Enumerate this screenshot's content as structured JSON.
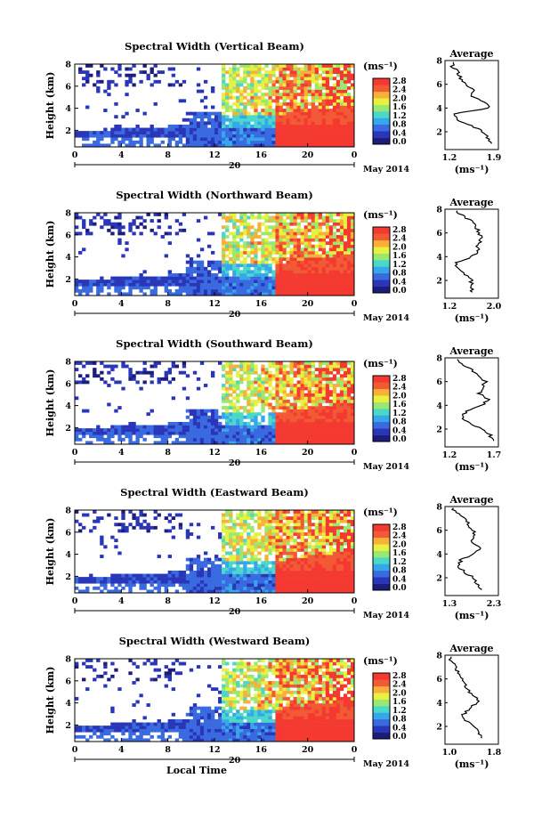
{
  "figure": {
    "xlabel": "Local Time",
    "ylabel": "Height (km)",
    "x_ticks": [
      "0",
      "4",
      "8",
      "12",
      "16",
      "20",
      "0"
    ],
    "date_tick": "20",
    "month_label": "May 2014",
    "colorbar_unit": "(ms⁻¹)",
    "colorbar_ticks": [
      "2.8",
      "2.4",
      "2.0",
      "1.6",
      "1.2",
      "0.8",
      "0.4",
      "0.0"
    ],
    "y_ticks": [
      "8",
      "6",
      "4",
      "2"
    ],
    "avg_title": "Average",
    "avg_unit": "(ms⁻¹)",
    "colors": {
      "scale": [
        "#1c1c7a",
        "#2a36b8",
        "#3a6ae0",
        "#36a8ea",
        "#4ad8c8",
        "#9ae870",
        "#e8f040",
        "#f8b038",
        "#f25a36",
        "#f43a30"
      ]
    }
  },
  "chart_data": [
    {
      "type": "heatmap",
      "title": "Spectral Width (Vertical Beam)",
      "xlabel": "",
      "ylabel": "Height (km)",
      "xlim_hours": [
        0,
        24
      ],
      "ylim_km": [
        0.5,
        8
      ],
      "colorbar_ticks": [
        "2.8",
        "2.4",
        "2.0",
        "1.6",
        "1.2",
        "0.8",
        "0.4",
        "0.0"
      ],
      "average_profile": {
        "xlim": [
          1.2,
          1.9
        ],
        "x_ticks": [
          "1.2",
          "1.9"
        ],
        "ylim_km": [
          0.5,
          8
        ],
        "height_km": [
          1.0,
          1.5,
          2.0,
          2.5,
          3.0,
          3.5,
          4.0,
          4.5,
          5.0,
          5.5,
          6.0,
          6.5,
          7.0,
          7.5,
          8.0
        ],
        "value": [
          1.82,
          1.75,
          1.7,
          1.55,
          1.35,
          1.3,
          1.78,
          1.72,
          1.55,
          1.58,
          1.45,
          1.4,
          1.38,
          1.3,
          1.28
        ]
      }
    },
    {
      "type": "heatmap",
      "title": "Spectral Width (Northward Beam)",
      "xlabel": "",
      "ylabel": "Height (km)",
      "xlim_hours": [
        0,
        24
      ],
      "ylim_km": [
        0.5,
        8
      ],
      "colorbar_ticks": [
        "2.8",
        "2.4",
        "2.0",
        "1.6",
        "1.2",
        "0.8",
        "0.4",
        "0.0"
      ],
      "average_profile": {
        "xlim": [
          1.2,
          2.0
        ],
        "x_ticks": [
          "1.2",
          "2.0"
        ],
        "ylim_km": [
          0.5,
          8
        ],
        "height_km": [
          1.0,
          1.5,
          2.0,
          2.5,
          3.0,
          3.5,
          4.0,
          4.5,
          5.0,
          5.5,
          6.0,
          6.5,
          7.0,
          7.5,
          8.0
        ],
        "value": [
          1.62,
          1.58,
          1.6,
          1.5,
          1.42,
          1.35,
          1.6,
          1.7,
          1.68,
          1.75,
          1.72,
          1.65,
          1.6,
          1.45,
          1.32
        ]
      }
    },
    {
      "type": "heatmap",
      "title": "Spectral Width (Southward Beam)",
      "xlabel": "",
      "ylabel": "Height (km)",
      "xlim_hours": [
        0,
        24
      ],
      "ylim_km": [
        0.5,
        8
      ],
      "colorbar_ticks": [
        "2.8",
        "2.4",
        "2.0",
        "1.6",
        "1.2",
        "0.8",
        "0.4",
        "0.0"
      ],
      "average_profile": {
        "xlim": [
          1.2,
          1.7
        ],
        "x_ticks": [
          "1.2",
          "1.7"
        ],
        "ylim_km": [
          0.5,
          8
        ],
        "height_km": [
          1.0,
          1.5,
          2.0,
          2.5,
          3.0,
          3.5,
          4.0,
          4.5,
          5.0,
          5.5,
          6.0,
          6.5,
          7.0,
          7.5,
          8.0
        ],
        "value": [
          1.66,
          1.62,
          1.55,
          1.42,
          1.36,
          1.4,
          1.55,
          1.6,
          1.52,
          1.55,
          1.58,
          1.5,
          1.45,
          1.35,
          1.28
        ]
      }
    },
    {
      "type": "heatmap",
      "title": "Spectral Width (Eastward Beam)",
      "xlabel": "",
      "ylabel": "Height (km)",
      "xlim_hours": [
        0,
        24
      ],
      "ylim_km": [
        0.5,
        8
      ],
      "colorbar_ticks": [
        "2.8",
        "2.4",
        "2.0",
        "1.6",
        "1.2",
        "0.8",
        "0.4",
        "0.0"
      ],
      "average_profile": {
        "xlim": [
          1.3,
          2.3
        ],
        "x_ticks": [
          "1.3",
          "2.3"
        ],
        "ylim_km": [
          0.5,
          8
        ],
        "height_km": [
          1.0,
          1.5,
          2.0,
          2.5,
          3.0,
          3.5,
          4.0,
          4.5,
          5.0,
          5.5,
          6.0,
          6.5,
          7.0,
          7.5,
          8.0
        ],
        "value": [
          2.0,
          1.9,
          1.85,
          1.65,
          1.55,
          1.6,
          1.85,
          1.95,
          1.8,
          1.85,
          1.82,
          1.75,
          1.65,
          1.5,
          1.4
        ]
      }
    },
    {
      "type": "heatmap",
      "title": "Spectral Width (Westward Beam)",
      "xlabel": "Local Time",
      "ylabel": "Height (km)",
      "xlim_hours": [
        0,
        24
      ],
      "ylim_km": [
        0.5,
        8
      ],
      "colorbar_ticks": [
        "2.8",
        "2.4",
        "2.0",
        "1.6",
        "1.2",
        "0.8",
        "0.4",
        "0.0"
      ],
      "average_profile": {
        "xlim": [
          1.0,
          1.8
        ],
        "x_ticks": [
          "1.0",
          "1.8"
        ],
        "ylim_km": [
          0.5,
          8
        ],
        "height_km": [
          1.0,
          1.5,
          2.0,
          2.5,
          3.0,
          3.5,
          4.0,
          4.5,
          5.0,
          5.5,
          6.0,
          6.5,
          7.0,
          7.5,
          8.0
        ],
        "value": [
          1.55,
          1.5,
          1.42,
          1.32,
          1.28,
          1.35,
          1.5,
          1.45,
          1.35,
          1.3,
          1.25,
          1.2,
          1.15,
          1.1,
          1.05
        ]
      }
    }
  ]
}
